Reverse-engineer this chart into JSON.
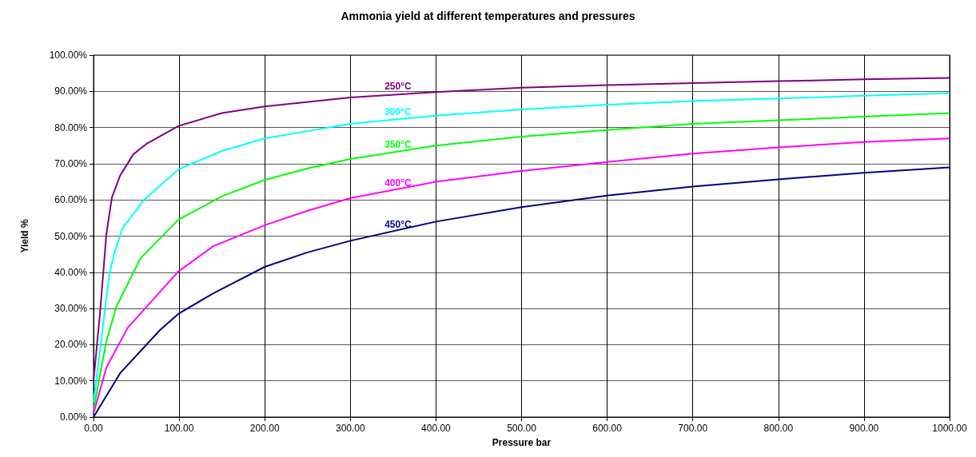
{
  "chart_data": {
    "type": "line",
    "title": "Ammonia yield at different temperatures and pressures",
    "xlabel": "Pressure bar",
    "ylabel": "Yield %",
    "xlim": [
      0,
      1000
    ],
    "ylim": [
      0,
      100
    ],
    "xticks": [
      {
        "value": 0,
        "label": "0.00"
      },
      {
        "value": 100,
        "label": "100.00"
      },
      {
        "value": 200,
        "label": "200.00"
      },
      {
        "value": 300,
        "label": "300.00"
      },
      {
        "value": 400,
        "label": "400.00"
      },
      {
        "value": 500,
        "label": "500.00"
      },
      {
        "value": 600,
        "label": "600.00"
      },
      {
        "value": 700,
        "label": "700.00"
      },
      {
        "value": 800,
        "label": "800.00"
      },
      {
        "value": 900,
        "label": "900.00"
      },
      {
        "value": 1000,
        "label": "1000.00"
      }
    ],
    "yticks": [
      {
        "value": 0,
        "label": "0.00%"
      },
      {
        "value": 10,
        "label": "10.00%"
      },
      {
        "value": 20,
        "label": "20.00%"
      },
      {
        "value": 30,
        "label": "30.00%"
      },
      {
        "value": 40,
        "label": "40.00%"
      },
      {
        "value": 50,
        "label": "50.00%"
      },
      {
        "value": 60,
        "label": "60.00%"
      },
      {
        "value": 70,
        "label": "70.00%"
      },
      {
        "value": 80,
        "label": "80.00%"
      },
      {
        "value": 90,
        "label": "90.00%"
      },
      {
        "value": 100,
        "label": "100.00%"
      }
    ],
    "grid": true,
    "legend": false,
    "marker": "none",
    "line_style": "solid",
    "series": [
      {
        "name": "250°C",
        "color": "#800080",
        "x": [
          0,
          7.5,
          15,
          21.5,
          31,
          46.5,
          62,
          99,
          150,
          200,
          300,
          400,
          500,
          600,
          700,
          800,
          900,
          1000
        ],
        "values": [
          10,
          28.5,
          50.5,
          60.7,
          66.7,
          72.6,
          75.5,
          80.4,
          84,
          85.8,
          88.3,
          89.8,
          91,
          91.7,
          92.3,
          92.8,
          93.3,
          93.7
        ]
      },
      {
        "name": "300°C",
        "color": "#00ffff",
        "x": [
          0,
          18.5,
          24,
          33.5,
          59,
          99,
          150,
          200,
          250,
          300,
          400,
          500,
          600,
          700,
          800,
          900,
          1000
        ],
        "values": [
          4,
          39.5,
          45,
          52,
          60,
          68.4,
          73.5,
          77,
          79,
          81,
          83.3,
          85,
          86.3,
          87.3,
          88,
          88.8,
          89.5
        ]
      },
      {
        "name": "350°C",
        "color": "#00ff00",
        "x": [
          0,
          15,
          27,
          55,
          99,
          150,
          200,
          250,
          300,
          400,
          500,
          600,
          700,
          800,
          900,
          1000
        ],
        "values": [
          2,
          21,
          30.7,
          43.9,
          54.5,
          61,
          65.5,
          68.7,
          71.3,
          75,
          77.5,
          79.3,
          81,
          82,
          83,
          84
        ]
      },
      {
        "name": "400°C",
        "color": "#ff00ff",
        "x": [
          0,
          15,
          40,
          99,
          140,
          200,
          250,
          300,
          400,
          500,
          600,
          700,
          800,
          900,
          1000
        ],
        "values": [
          1,
          13.7,
          24.7,
          40.2,
          47.2,
          53,
          57,
          60.5,
          65,
          68,
          70.5,
          72.8,
          74.5,
          76,
          77
        ]
      },
      {
        "name": "450°C",
        "color": "#000080",
        "x": [
          0,
          31,
          77.5,
          99,
          140,
          200,
          250,
          300,
          400,
          500,
          600,
          700,
          800,
          900,
          1000
        ],
        "values": [
          0,
          12.1,
          24,
          28.5,
          34.2,
          41.5,
          45.5,
          48.7,
          54,
          58,
          61.2,
          63.7,
          65.7,
          67.5,
          69
        ]
      }
    ]
  }
}
